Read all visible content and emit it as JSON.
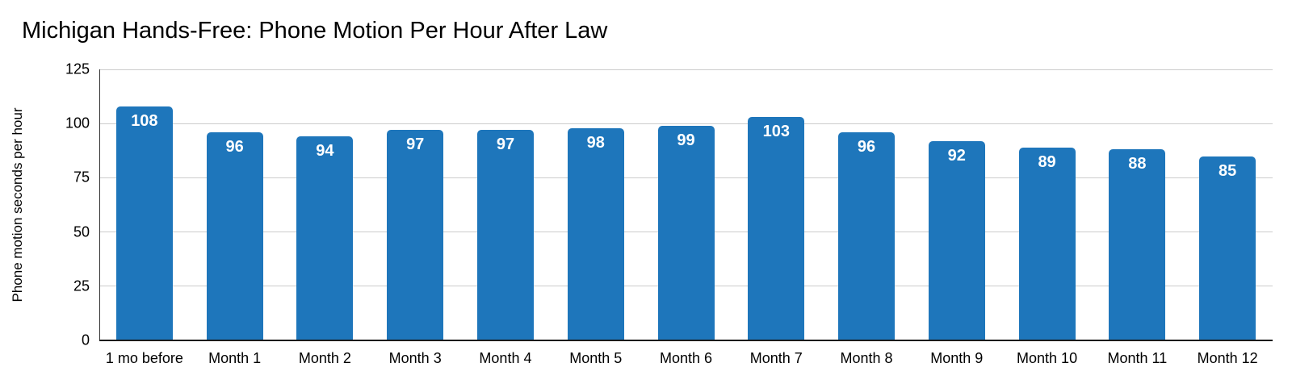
{
  "chart_data": {
    "type": "bar",
    "title": "Michigan Hands-Free: Phone Motion Per Hour After Law",
    "ylabel": "Phone motion seconds per hour",
    "xlabel": "",
    "categories": [
      "1 mo before",
      "Month 1",
      "Month 2",
      "Month 3",
      "Month 4",
      "Month 5",
      "Month 6",
      "Month 7",
      "Month 8",
      "Month 9",
      "Month 10",
      "Month 11",
      "Month 12"
    ],
    "values": [
      108,
      96,
      94,
      97,
      97,
      98,
      99,
      103,
      96,
      92,
      89,
      88,
      85
    ],
    "ylim": [
      0,
      125
    ],
    "yticks": [
      0,
      25,
      50,
      75,
      100,
      125
    ],
    "bar_color": "#1e76bb",
    "value_label_color": "#ffffff",
    "gridline_color": "#cccccc",
    "grid": "horizontal",
    "legend_position": "none"
  }
}
